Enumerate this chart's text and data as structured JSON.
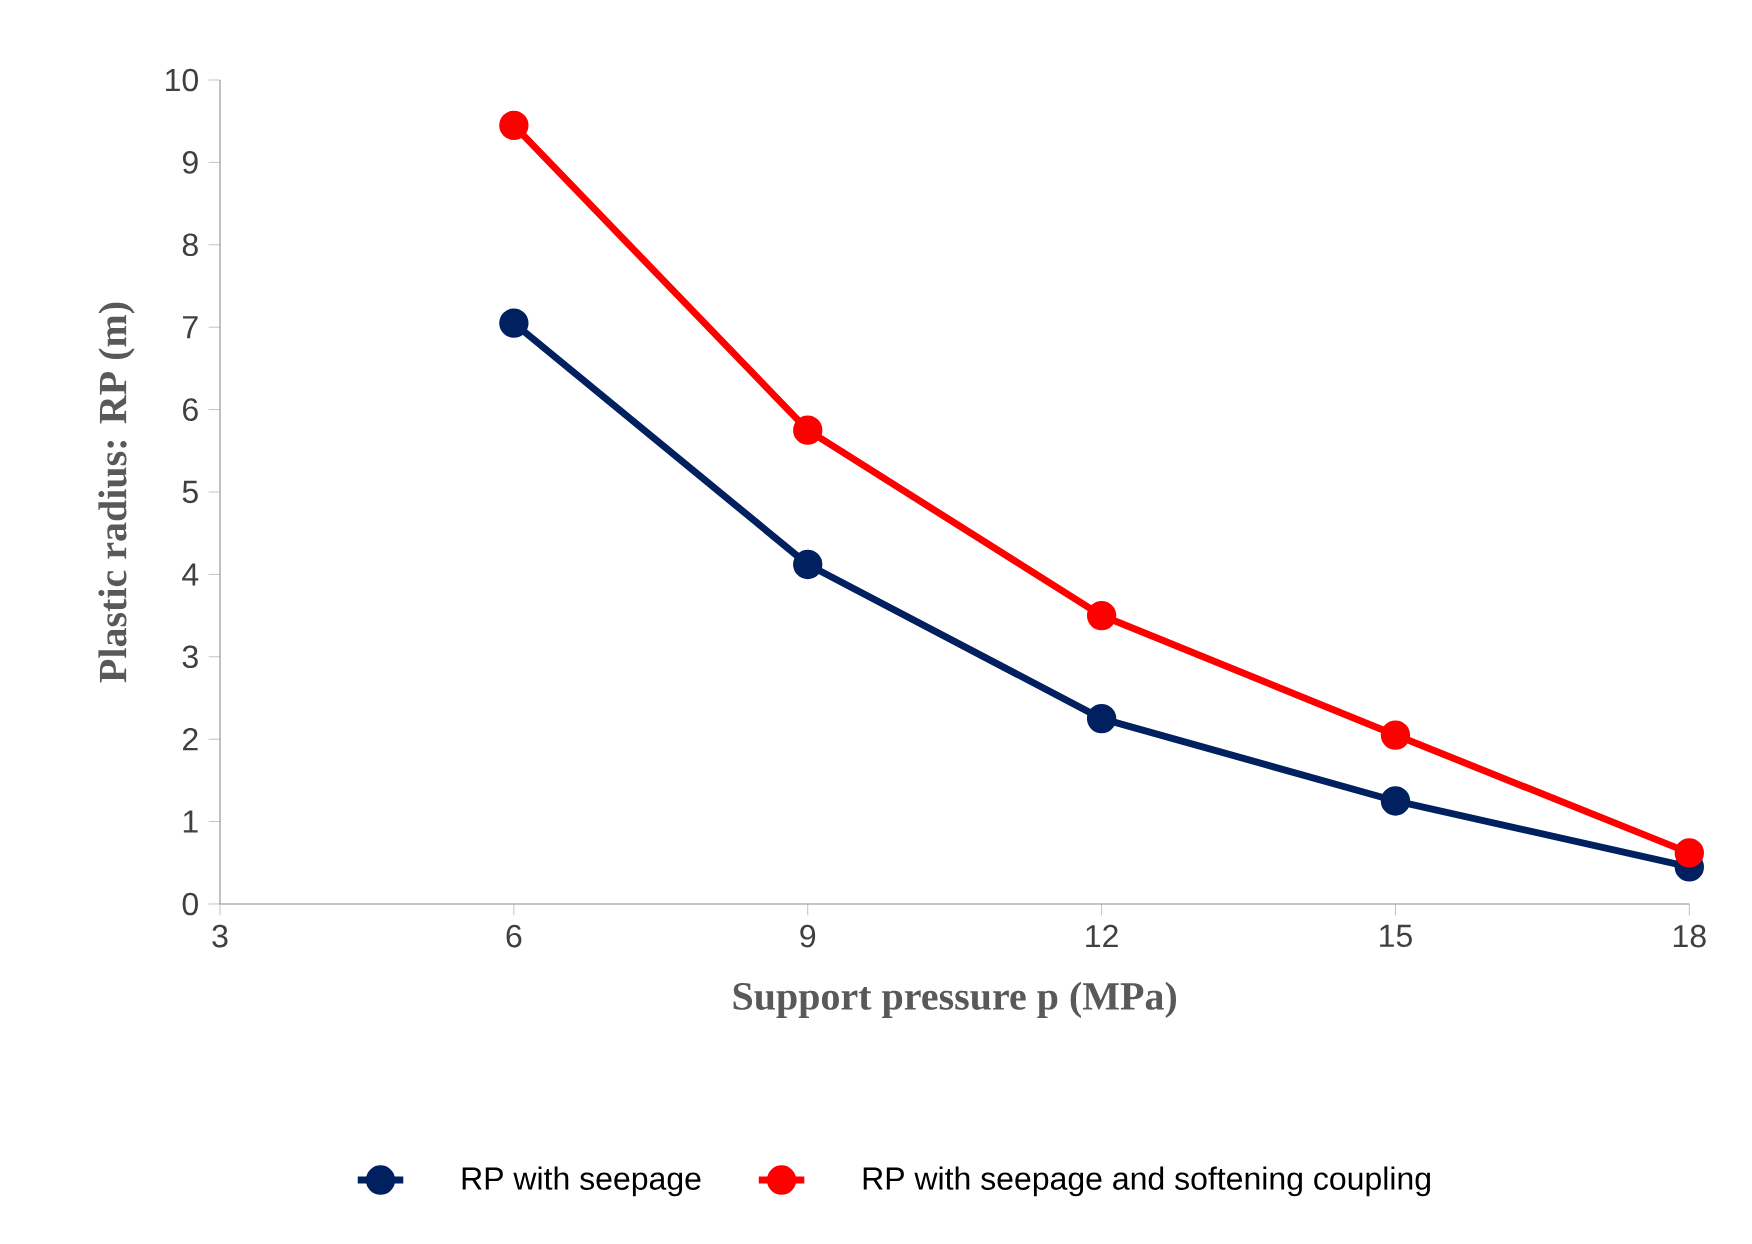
{
  "chart_data": {
    "type": "line",
    "xlabel": "Support pressure p (MPa)",
    "ylabel": "Plastic radius:  RP (m)",
    "x": [
      6,
      9,
      12,
      15,
      18
    ],
    "series": [
      {
        "name": "RP with seepage",
        "color": "#002060",
        "values": [
          7.05,
          4.12,
          2.25,
          1.25,
          0.45
        ]
      },
      {
        "name": "RP with seepage and softening coupling",
        "color": "#ff0000",
        "values": [
          9.45,
          5.75,
          3.5,
          2.05,
          0.62
        ]
      }
    ],
    "xlim": [
      3,
      18
    ],
    "xticks": [
      3,
      6,
      9,
      12,
      15,
      18
    ],
    "ylim": [
      0,
      10
    ],
    "yticks": [
      0,
      1,
      2,
      3,
      4,
      5,
      6,
      7,
      8,
      9,
      10
    ],
    "grid": false,
    "legend": "bottom",
    "marker": "circle",
    "line_style": "solid"
  }
}
